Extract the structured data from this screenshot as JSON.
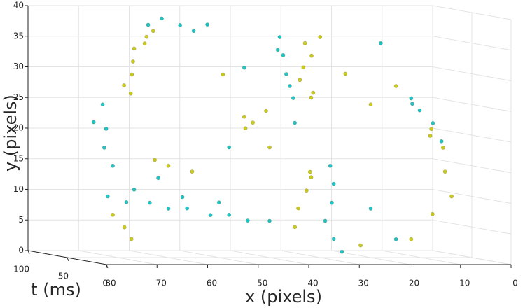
{
  "chart_data": {
    "type": "scatter3d",
    "xlabel": "x (pixels)",
    "ylabel": "y (pixels)",
    "zlabel": "t (ms)",
    "xlim": [
      0,
      80
    ],
    "xdir": "reverse",
    "xticks": [
      0,
      10,
      20,
      30,
      40,
      50,
      60,
      70,
      80
    ],
    "ylim": [
      0,
      40
    ],
    "yticks": [
      0,
      5,
      10,
      15,
      20,
      25,
      30,
      35,
      40
    ],
    "zlim": [
      0,
      100
    ],
    "zticks": [
      0,
      50,
      100
    ],
    "grid": true,
    "series": [
      {
        "color": "#caca1e",
        "x": [
          68,
          67,
          66,
          65,
          64,
          63,
          68,
          69,
          33,
          32,
          33,
          34,
          32,
          31,
          30,
          45,
          43,
          41,
          44,
          32,
          33,
          34,
          35,
          31,
          8,
          6,
          5,
          4,
          7,
          9,
          71,
          69,
          67,
          60,
          55,
          63,
          20,
          25,
          15,
          50,
          22,
          12,
          40
        ],
        "y": [
          30,
          32,
          34,
          35,
          36,
          37,
          28,
          27,
          35,
          33,
          31,
          29,
          27,
          26,
          36,
          23,
          22,
          24,
          21,
          14,
          11,
          8,
          5,
          13,
          21,
          18,
          14,
          10,
          7,
          20,
          7,
          5,
          3,
          15,
          14,
          16,
          25,
          30,
          28,
          30,
          2,
          3,
          18
        ],
        "t": [
          45,
          50,
          55,
          48,
          52,
          50,
          55,
          40,
          50,
          48,
          52,
          50,
          46,
          55,
          50,
          50,
          52,
          48,
          55,
          50,
          48,
          52,
          50,
          55,
          50,
          48,
          52,
          50,
          55,
          45,
          50,
          48,
          52,
          50,
          52,
          48,
          50,
          50,
          50,
          45,
          50,
          50,
          50
        ]
      },
      {
        "color": "#1fc4c8",
        "x": [
          72,
          68,
          64,
          60,
          56,
          52,
          48,
          44,
          40,
          66,
          58,
          50,
          38,
          37,
          37,
          36,
          35,
          39,
          28,
          27,
          28,
          29,
          27,
          26,
          12,
          10,
          8,
          6,
          11,
          64,
          61,
          58,
          55,
          52,
          73,
          72,
          73,
          71,
          74,
          45,
          20,
          15,
          35,
          62,
          48,
          18
        ],
        "y": [
          10,
          9,
          9,
          8,
          8,
          7,
          7,
          6,
          6,
          11,
          10,
          9,
          36,
          33,
          30,
          28,
          26,
          34,
          15,
          12,
          9,
          6,
          3,
          1,
          26,
          24,
          22,
          19,
          25,
          38,
          39,
          38,
          37,
          38,
          25,
          21,
          18,
          15,
          22,
          31,
          8,
          3,
          22,
          13,
          18,
          35
        ],
        "t": [
          50,
          52,
          48,
          50,
          52,
          48,
          50,
          52,
          50,
          55,
          45,
          50,
          50,
          52,
          48,
          50,
          52,
          46,
          50,
          52,
          48,
          50,
          52,
          48,
          50,
          52,
          48,
          50,
          55,
          50,
          52,
          48,
          50,
          52,
          50,
          52,
          48,
          50,
          55,
          50,
          50,
          50,
          50,
          50,
          50,
          50
        ]
      }
    ]
  }
}
